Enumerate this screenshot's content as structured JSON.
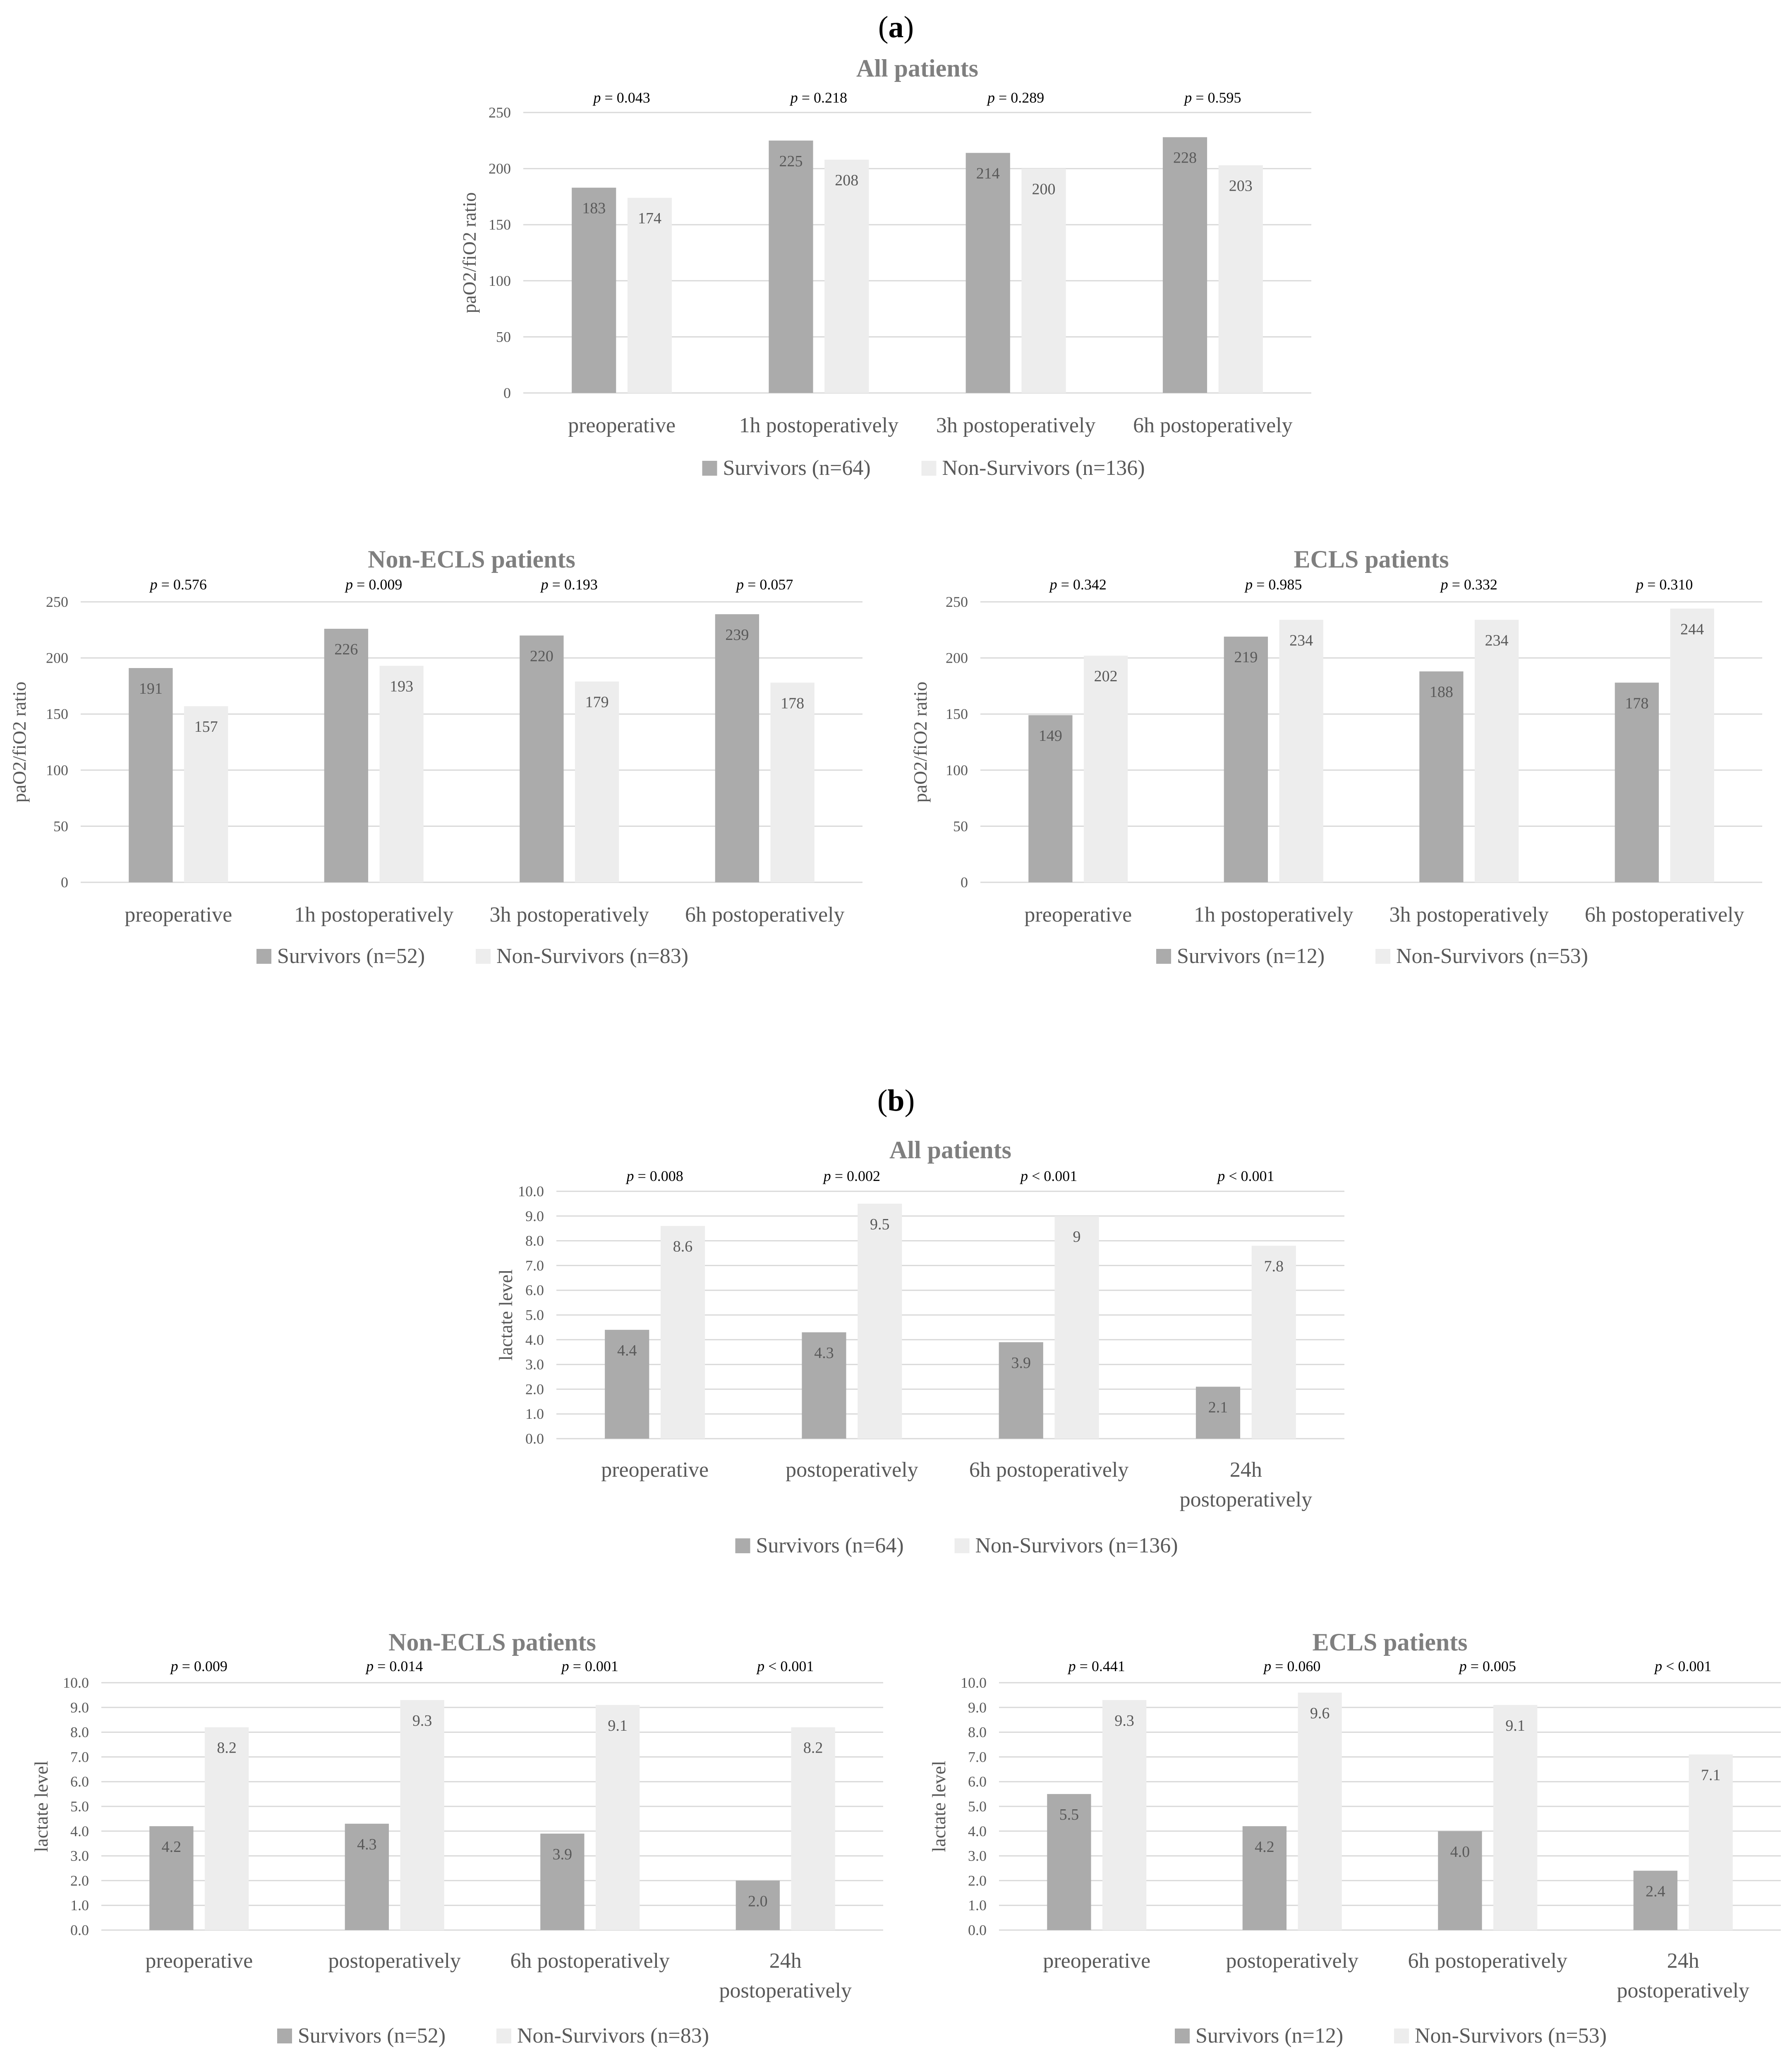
{
  "panels": [
    {
      "label_open": "(",
      "label_letter": "a",
      "label_close": ")"
    },
    {
      "label_open": "(",
      "label_letter": "b",
      "label_close": ")"
    }
  ],
  "colors": {
    "survivors": "#ababab",
    "non_survivors": "#ededed",
    "grid": "#d9d9d9",
    "title": "#7f7f7f",
    "text": "#595959"
  },
  "chart_data": [
    {
      "type": "bar",
      "panel": "a",
      "title": "All patients",
      "ylabel": "paO2/fiO2 ratio",
      "ylim": [
        0,
        250
      ],
      "yticks": [
        "0",
        "50",
        "100",
        "150",
        "200",
        "250"
      ],
      "categories": [
        [
          "preoperative"
        ],
        [
          "1h postoperatively"
        ],
        [
          "3h postoperatively"
        ],
        [
          "6h postoperatively"
        ]
      ],
      "p_prefix": "p",
      "p_values": [
        "= 0.043",
        "= 0.218",
        "= 0.289",
        "= 0.595"
      ],
      "series": [
        {
          "name": "Survivors (n=64)",
          "values": [
            183,
            225,
            214,
            228
          ],
          "labels": [
            "183",
            "225",
            "214",
            "228"
          ]
        },
        {
          "name": "Non-Survivors (n=136)",
          "values": [
            174,
            208,
            200,
            203
          ],
          "labels": [
            "174",
            "208",
            "200",
            "203"
          ]
        }
      ]
    },
    {
      "type": "bar",
      "panel": "a",
      "title": "Non-ECLS patients",
      "ylabel": "paO2/fiO2 ratio",
      "ylim": [
        0,
        250
      ],
      "yticks": [
        "0",
        "50",
        "100",
        "150",
        "200",
        "250"
      ],
      "categories": [
        [
          "preoperative"
        ],
        [
          "1h postoperatively"
        ],
        [
          "3h postoperatively"
        ],
        [
          "6h postoperatively"
        ]
      ],
      "p_prefix": "p",
      "p_values": [
        "= 0.576",
        "= 0.009",
        "= 0.193",
        "= 0.057"
      ],
      "series": [
        {
          "name": "Survivors (n=52)",
          "values": [
            191,
            226,
            220,
            239
          ],
          "labels": [
            "191",
            "226",
            "220",
            "239"
          ]
        },
        {
          "name": "Non-Survivors (n=83)",
          "values": [
            157,
            193,
            179,
            178
          ],
          "labels": [
            "157",
            "193",
            "179",
            "178"
          ]
        }
      ]
    },
    {
      "type": "bar",
      "panel": "a",
      "title": "ECLS patients",
      "ylabel": "paO2/fiO2 ratio",
      "ylim": [
        0,
        250
      ],
      "yticks": [
        "0",
        "50",
        "100",
        "150",
        "200",
        "250"
      ],
      "categories": [
        [
          "preoperative"
        ],
        [
          "1h postoperatively"
        ],
        [
          "3h postoperatively"
        ],
        [
          "6h postoperatively"
        ]
      ],
      "p_prefix": "p",
      "p_values": [
        "= 0.342",
        "= 0.985",
        "= 0.332",
        "= 0.310"
      ],
      "series": [
        {
          "name": "Survivors (n=12)",
          "values": [
            149,
            219,
            188,
            178
          ],
          "labels": [
            "149",
            "219",
            "188",
            "178"
          ]
        },
        {
          "name": "Non-Survivors (n=53)",
          "values": [
            202,
            234,
            234,
            244
          ],
          "labels": [
            "202",
            "234",
            "234",
            "244"
          ]
        }
      ]
    },
    {
      "type": "bar",
      "panel": "b",
      "title": "All patients",
      "ylabel": "lactate level",
      "ylim": [
        0,
        10
      ],
      "yticks": [
        "0.0",
        "1.0",
        "2.0",
        "3.0",
        "4.0",
        "5.0",
        "6.0",
        "7.0",
        "8.0",
        "9.0",
        "10.0"
      ],
      "categories": [
        [
          "preoperative"
        ],
        [
          "postoperatively"
        ],
        [
          "6h postoperatively"
        ],
        [
          "24h",
          "postoperatively"
        ]
      ],
      "p_prefix": "p",
      "p_values": [
        "= 0.008",
        "= 0.002",
        "< 0.001",
        "< 0.001"
      ],
      "series": [
        {
          "name": "Survivors (n=64)",
          "values": [
            4.4,
            4.3,
            3.9,
            2.1
          ],
          "labels": [
            "4.4",
            "4.3",
            "3.9",
            "2.1"
          ]
        },
        {
          "name": "Non-Survivors (n=136)",
          "values": [
            8.6,
            9.5,
            9,
            7.8
          ],
          "labels": [
            "8.6",
            "9.5",
            "9",
            "7.8"
          ]
        }
      ]
    },
    {
      "type": "bar",
      "panel": "b",
      "title": "Non-ECLS patients",
      "ylabel": "lactate level",
      "ylim": [
        0,
        10
      ],
      "yticks": [
        "0.0",
        "1.0",
        "2.0",
        "3.0",
        "4.0",
        "5.0",
        "6.0",
        "7.0",
        "8.0",
        "9.0",
        "10.0"
      ],
      "categories": [
        [
          "preoperative"
        ],
        [
          "postoperatively"
        ],
        [
          "6h postoperatively"
        ],
        [
          "24h",
          "postoperatively"
        ]
      ],
      "p_prefix": "p",
      "p_values": [
        "= 0.009",
        "= 0.014",
        "= 0.001",
        "< 0.001"
      ],
      "series": [
        {
          "name": "Survivors (n=52)",
          "values": [
            4.2,
            4.3,
            3.9,
            2.0
          ],
          "labels": [
            "4.2",
            "4.3",
            "3.9",
            "2.0"
          ]
        },
        {
          "name": "Non-Survivors (n=83)",
          "values": [
            8.2,
            9.3,
            9.1,
            8.2
          ],
          "labels": [
            "8.2",
            "9.3",
            "9.1",
            "8.2"
          ]
        }
      ]
    },
    {
      "type": "bar",
      "panel": "b",
      "title": "ECLS patients",
      "ylabel": "lactate level",
      "ylim": [
        0,
        10
      ],
      "yticks": [
        "0.0",
        "1.0",
        "2.0",
        "3.0",
        "4.0",
        "5.0",
        "6.0",
        "7.0",
        "8.0",
        "9.0",
        "10.0"
      ],
      "categories": [
        [
          "preoperative"
        ],
        [
          "postoperatively"
        ],
        [
          "6h postoperatively"
        ],
        [
          "24h",
          "postoperatively"
        ]
      ],
      "p_prefix": "p",
      "p_values": [
        "= 0.441",
        "= 0.060",
        "= 0.005",
        "< 0.001"
      ],
      "series": [
        {
          "name": "Survivors (n=12)",
          "values": [
            5.5,
            4.2,
            4.0,
            2.4
          ],
          "labels": [
            "5.5",
            "4.2",
            "4.0",
            "2.4"
          ]
        },
        {
          "name": "Non-Survivors (n=53)",
          "values": [
            9.3,
            9.6,
            9.1,
            7.1
          ],
          "labels": [
            "9.3",
            "9.6",
            "9.1",
            "7.1"
          ]
        }
      ]
    }
  ]
}
